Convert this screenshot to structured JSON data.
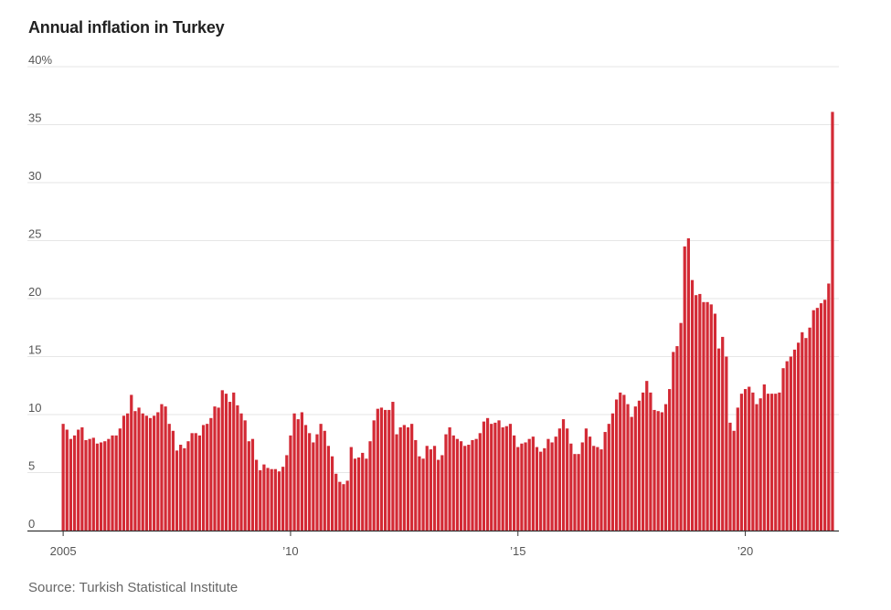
{
  "chart_data": {
    "type": "bar",
    "title": "Annual inflation in Turkey",
    "source": "Source: Turkish Statistical Institute",
    "xlabel": "",
    "ylabel": "",
    "ylim": [
      0,
      40
    ],
    "y_ticks": [
      0,
      5,
      10,
      15,
      20,
      25,
      30,
      35,
      40
    ],
    "y_tick_labels": [
      "0",
      "5",
      "10",
      "15",
      "20",
      "25",
      "30",
      "35",
      "40%"
    ],
    "x_tick_labels": [
      {
        "label": "2005",
        "year": 2005
      },
      {
        "label": "’10",
        "year": 2010
      },
      {
        "label": "’15",
        "year": 2015
      },
      {
        "label": "’20",
        "year": 2020
      }
    ],
    "grid": true,
    "bar_color": "#d32a35",
    "start": "2005-01",
    "end": "2021-12",
    "values": [
      9.2,
      8.7,
      7.9,
      8.2,
      8.7,
      8.9,
      7.8,
      7.9,
      8.0,
      7.5,
      7.6,
      7.7,
      7.9,
      8.2,
      8.2,
      8.8,
      9.9,
      10.1,
      11.7,
      10.3,
      10.6,
      10.1,
      9.9,
      9.7,
      9.9,
      10.2,
      10.9,
      10.7,
      9.2,
      8.6,
      6.9,
      7.4,
      7.1,
      7.7,
      8.4,
      8.4,
      8.2,
      9.1,
      9.2,
      9.7,
      10.7,
      10.6,
      12.1,
      11.8,
      11.1,
      11.9,
      10.8,
      10.1,
      9.5,
      7.7,
      7.9,
      6.1,
      5.2,
      5.7,
      5.4,
      5.3,
      5.3,
      5.1,
      5.5,
      6.5,
      8.2,
      10.1,
      9.6,
      10.2,
      9.1,
      8.4,
      7.6,
      8.3,
      9.2,
      8.6,
      7.3,
      6.4,
      4.9,
      4.2,
      4.0,
      4.3,
      7.2,
      6.2,
      6.3,
      6.7,
      6.2,
      7.7,
      9.5,
      10.5,
      10.6,
      10.4,
      10.4,
      11.1,
      8.3,
      8.9,
      9.1,
      8.9,
      9.2,
      7.8,
      6.4,
      6.2,
      7.3,
      7.0,
      7.3,
      6.1,
      6.5,
      8.3,
      8.9,
      8.2,
      7.9,
      7.7,
      7.3,
      7.4,
      7.8,
      7.9,
      8.4,
      9.4,
      9.7,
      9.2,
      9.3,
      9.5,
      8.9,
      9.0,
      9.2,
      8.2,
      7.2,
      7.5,
      7.6,
      7.9,
      8.1,
      7.2,
      6.8,
      7.1,
      7.9,
      7.6,
      8.1,
      8.8,
      9.6,
      8.8,
      7.5,
      6.6,
      6.6,
      7.6,
      8.8,
      8.1,
      7.3,
      7.2,
      7.0,
      8.5,
      9.2,
      10.1,
      11.3,
      11.9,
      11.7,
      10.9,
      9.8,
      10.7,
      11.2,
      11.9,
      12.9,
      11.9,
      10.4,
      10.3,
      10.2,
      10.9,
      12.2,
      15.4,
      15.9,
      17.9,
      24.5,
      25.2,
      21.6,
      20.3,
      20.4,
      19.7,
      19.7,
      19.5,
      18.7,
      15.7,
      16.7,
      15.0,
      9.3,
      8.6,
      10.6,
      11.8,
      12.2,
      12.4,
      11.9,
      10.9,
      11.4,
      12.6,
      11.8,
      11.8,
      11.8,
      11.9,
      14.0,
      14.6,
      15.0,
      15.6,
      16.2,
      17.1,
      16.6,
      17.5,
      19.0,
      19.2,
      19.6,
      19.9,
      21.3,
      36.1
    ]
  }
}
